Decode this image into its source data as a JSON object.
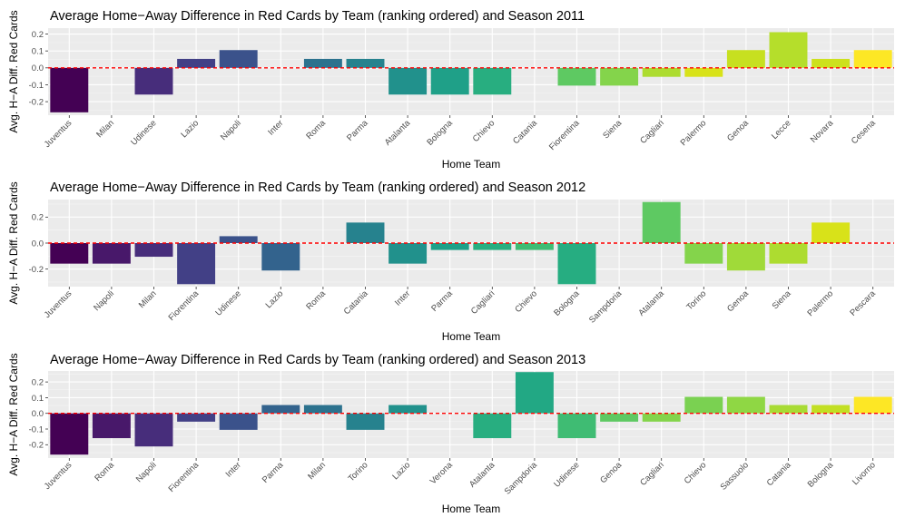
{
  "chart_data": [
    {
      "type": "bar",
      "title": "Average Home−Away Difference in Red Cards by Team (ranking ordered) and Season 2011",
      "xlabel": "Home Team",
      "ylabel": "Avg. H−A Diff. Red Cards",
      "ylim": [
        -0.28,
        0.235
      ],
      "yticks": [
        -0.2,
        -0.1,
        0.0,
        0.1,
        0.2
      ],
      "ytick_labels": [
        "-0.2",
        "-0.1",
        "0.0",
        "0.1",
        "0.2"
      ],
      "reference_line": 0,
      "categories": [
        "Juventus",
        "Milan",
        "Udinese",
        "Lazio",
        "Napoli",
        "Inter",
        "Roma",
        "Parma",
        "Atalanta",
        "Bologna",
        "Chievo",
        "Catania",
        "Fiorentina",
        "Siena",
        "Cagliari",
        "Palermo",
        "Genoa",
        "Lecce",
        "Novara",
        "Cesena"
      ],
      "values": [
        -0.263,
        0.0,
        -0.158,
        0.053,
        0.105,
        0.0,
        0.053,
        0.053,
        -0.158,
        -0.158,
        -0.158,
        0.0,
        -0.105,
        -0.105,
        -0.053,
        -0.053,
        0.105,
        0.211,
        0.053,
        0.105
      ],
      "colors": [
        "#440154",
        "#48186a",
        "#472d7b",
        "#424086",
        "#3b528b",
        "#33638d",
        "#2c728e",
        "#26828e",
        "#21918c",
        "#1fa088",
        "#28ae80",
        "#3fbc73",
        "#5ec962",
        "#84d44b",
        "#addc30",
        "#d8e219",
        "#c7e020",
        "#b5de2b",
        "#cde11d",
        "#fde725"
      ]
    },
    {
      "type": "bar",
      "title": "Average Home−Away Difference in Red Cards by Team (ranking ordered) and Season 2012",
      "xlabel": "Home Team",
      "ylabel": "Avg. H−A Diff. Red Cards",
      "ylim": [
        -0.335,
        0.335
      ],
      "yticks": [
        -0.2,
        0.0,
        0.2
      ],
      "ytick_labels": [
        "-0.2",
        "0.0",
        "0.2"
      ],
      "reference_line": 0,
      "categories": [
        "Juventus",
        "Napoli",
        "Milan",
        "Fiorentina",
        "Udinese",
        "Lazio",
        "Roma",
        "Catania",
        "Inter",
        "Parma",
        "Cagliari",
        "Chievo",
        "Bologna",
        "Sampdoria",
        "Atalanta",
        "Torino",
        "Genoa",
        "Siena",
        "Palermo",
        "Pescara"
      ],
      "values": [
        -0.158,
        -0.158,
        -0.105,
        -0.316,
        0.053,
        -0.211,
        0.0,
        0.158,
        -0.158,
        -0.053,
        -0.053,
        -0.053,
        -0.316,
        0.0,
        0.316,
        -0.158,
        -0.211,
        -0.158,
        0.158,
        0.0
      ],
      "colors": [
        "#440154",
        "#48186a",
        "#472d7b",
        "#424086",
        "#3b528b",
        "#33638d",
        "#2c728e",
        "#26828e",
        "#21918c",
        "#1fa088",
        "#28ae80",
        "#3fbc73",
        "#26ad81",
        "#3fbc73",
        "#5ec962",
        "#84d44b",
        "#a0da39",
        "#addc30",
        "#d8e219",
        "#fde725"
      ]
    },
    {
      "type": "bar",
      "title": "Average Home−Away Difference in Red Cards by Team (ranking ordered) and Season 2013",
      "xlabel": "Home Team",
      "ylabel": "Avg. H−A Diff. Red Cards",
      "ylim": [
        -0.285,
        0.27
      ],
      "yticks": [
        -0.2,
        -0.1,
        0.0,
        0.1,
        0.2
      ],
      "ytick_labels": [
        "-0.2",
        "-0.1",
        "0.0",
        "0.1",
        "0.2"
      ],
      "reference_line": 0,
      "categories": [
        "Juventus",
        "Roma",
        "Napoli",
        "Fiorentina",
        "Inter",
        "Parma",
        "Milan",
        "Torino",
        "Lazio",
        "Verona",
        "Atalanta",
        "Sampdoria",
        "Udinese",
        "Genoa",
        "Cagliari",
        "Chievo",
        "Sassuolo",
        "Catania",
        "Bologna",
        "Livorno"
      ],
      "values": [
        -0.263,
        -0.158,
        -0.211,
        -0.053,
        -0.105,
        0.053,
        0.053,
        -0.105,
        0.053,
        0.0,
        -0.158,
        0.263,
        -0.158,
        -0.053,
        -0.053,
        0.105,
        0.105,
        0.053,
        0.053,
        0.105
      ],
      "colors": [
        "#440154",
        "#48186a",
        "#472d7b",
        "#424086",
        "#3b528b",
        "#33638d",
        "#2c728e",
        "#26828e",
        "#21918c",
        "#1fa088",
        "#28ae80",
        "#22a884",
        "#3fbc73",
        "#5ec962",
        "#84d44b",
        "#7ad151",
        "#8fd744",
        "#a8db34",
        "#c2df23",
        "#fde725"
      ]
    }
  ]
}
